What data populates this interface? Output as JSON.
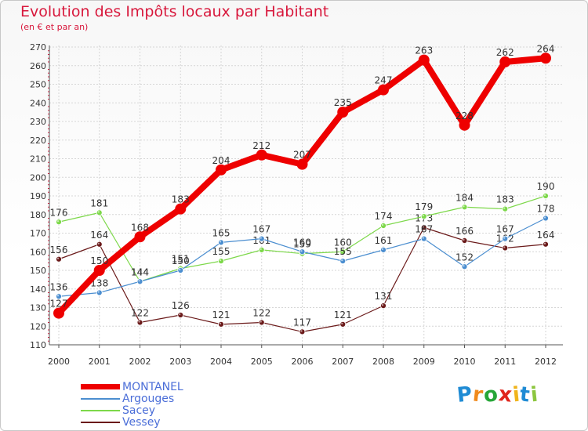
{
  "header": {
    "title": "Evolution des Impôts locaux par Habitant",
    "subtitle": "(en € et par an)"
  },
  "logo": {
    "letters": [
      "P",
      "r",
      "o",
      "x",
      "i",
      "t",
      "i"
    ],
    "colors": [
      "#1f8bd4",
      "#f08a1c",
      "#27a638",
      "#e0251c",
      "#f0b41c",
      "#1f8bd4",
      "#8cc63e"
    ]
  },
  "chart_data": {
    "type": "line",
    "x": [
      2000,
      2001,
      2002,
      2003,
      2004,
      2005,
      2006,
      2007,
      2008,
      2009,
      2010,
      2011,
      2012
    ],
    "ylim": [
      110,
      270
    ],
    "yticks": [
      110,
      120,
      130,
      140,
      150,
      160,
      170,
      180,
      190,
      200,
      210,
      220,
      230,
      240,
      250,
      260,
      270
    ],
    "grid": true,
    "legend_position": "bottom-left",
    "series": [
      {
        "name": "MONTANEL",
        "color": "#ee0000",
        "width": 8,
        "marker": 7,
        "values": [
          127,
          150,
          168,
          183,
          204,
          212,
          207,
          235,
          247,
          263,
          228,
          262,
          264
        ]
      },
      {
        "name": "Argouges",
        "color": "#4b8ed0",
        "width": 1.2,
        "marker": 3.5,
        "values": [
          136,
          138,
          144,
          150,
          165,
          167,
          160,
          155,
          161,
          167,
          152,
          167,
          178
        ]
      },
      {
        "name": "Sacey",
        "color": "#7dd84a",
        "width": 1.2,
        "marker": 3.5,
        "values": [
          176,
          181,
          144,
          151,
          155,
          161,
          159,
          160,
          174,
          179,
          184,
          183,
          190
        ]
      },
      {
        "name": "Vessey",
        "color": "#6b1a1a",
        "width": 1.2,
        "marker": 3.5,
        "values": [
          156,
          164,
          122,
          126,
          121,
          122,
          117,
          121,
          131,
          173,
          166,
          162,
          164
        ]
      }
    ]
  }
}
